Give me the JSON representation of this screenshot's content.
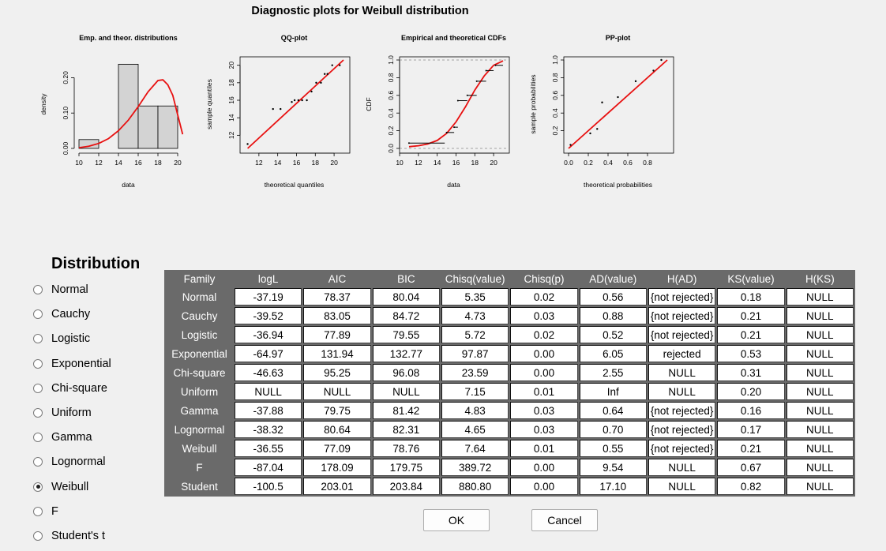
{
  "main_title": "Diagnostic plots for Weibull distribution",
  "chart_data": [
    {
      "type": "bar",
      "title": "Emp. and theor. distributions",
      "xlabel": "data",
      "ylabel": "density",
      "x_ticks": [
        "10",
        "12",
        "14",
        "16",
        "18",
        "20"
      ],
      "y_ticks": [
        "0.00",
        "0.10",
        "0.20"
      ],
      "xlim": [
        10,
        20
      ],
      "ylim": [
        0,
        0.25
      ],
      "bins": [
        {
          "from": 10,
          "to": 12,
          "density": 0.025
        },
        {
          "from": 12,
          "to": 14,
          "density": 0
        },
        {
          "from": 14,
          "to": 16,
          "density": 0.238
        },
        {
          "from": 16,
          "to": 18,
          "density": 0.12
        },
        {
          "from": 18,
          "to": 20,
          "density": 0.12
        }
      ],
      "curve": {
        "x": [
          10,
          11,
          12,
          13,
          14,
          15,
          16,
          17,
          18,
          18.5,
          19,
          19.5,
          20,
          20.5
        ],
        "y": [
          0.002,
          0.006,
          0.014,
          0.028,
          0.05,
          0.08,
          0.118,
          0.16,
          0.192,
          0.194,
          0.18,
          0.15,
          0.095,
          0.04
        ]
      },
      "curve_color": "#e81010"
    },
    {
      "type": "scatter",
      "title": "QQ-plot",
      "xlabel": "theoretical quantiles",
      "ylabel": "sample quantiles",
      "x_ticks": [
        "12",
        "14",
        "16",
        "18",
        "20"
      ],
      "y_ticks": [
        "12",
        "14",
        "16",
        "18",
        "20"
      ],
      "xlim": [
        10.5,
        21
      ],
      "ylim": [
        10.5,
        20.6
      ],
      "points": [
        [
          10.8,
          11
        ],
        [
          13.5,
          15
        ],
        [
          14.3,
          15
        ],
        [
          15.5,
          15.8
        ],
        [
          15.8,
          16
        ],
        [
          16.2,
          16
        ],
        [
          16.6,
          16
        ],
        [
          17.1,
          16
        ],
        [
          17.6,
          17
        ],
        [
          18.1,
          18
        ],
        [
          18.6,
          18
        ],
        [
          19,
          19
        ],
        [
          19.3,
          19
        ],
        [
          19.8,
          20
        ],
        [
          20.6,
          20
        ]
      ],
      "line": [
        [
          10.8,
          10.5
        ],
        [
          21,
          20.6
        ]
      ],
      "line_color": "#e81010"
    },
    {
      "type": "line",
      "title": "Empirical and theoretical CDFs",
      "xlabel": "data",
      "ylabel": "CDF",
      "x_ticks": [
        "10",
        "12",
        "14",
        "16",
        "18",
        "20"
      ],
      "y_ticks": [
        "0.0",
        "0.2",
        "0.4",
        "0.6",
        "0.8",
        "1.0"
      ],
      "xlim": [
        10.5,
        21
      ],
      "ylim": [
        0,
        1.0
      ],
      "steps": [
        [
          11,
          14.8,
          0.06
        ],
        [
          15,
          15.8,
          0.18
        ],
        [
          15.8,
          16.2,
          0.24
        ],
        [
          16.2,
          17.2,
          0.54
        ],
        [
          17.2,
          18.2,
          0.6
        ],
        [
          18.2,
          19.2,
          0.76
        ],
        [
          19.2,
          20,
          0.88
        ],
        [
          20.2,
          21,
          0.94
        ]
      ],
      "curve": {
        "x": [
          11,
          12,
          13,
          14,
          15,
          16,
          17,
          18,
          19,
          20,
          21
        ],
        "y": [
          0.02,
          0.03,
          0.05,
          0.09,
          0.17,
          0.3,
          0.47,
          0.66,
          0.82,
          0.94,
          0.99
        ]
      },
      "curve_color": "#e81010"
    },
    {
      "type": "scatter",
      "title": "PP-plot",
      "xlabel": "theoretical probabilities",
      "ylabel": "sample probabilities",
      "x_ticks": [
        "0.0",
        "0.2",
        "0.4",
        "0.6",
        "0.8"
      ],
      "y_ticks": [
        "0.2",
        "0.4",
        "0.6",
        "0.8",
        "1.0"
      ],
      "xlim": [
        0,
        1
      ],
      "ylim": [
        0,
        1
      ],
      "points": [
        [
          0.02,
          0.04
        ],
        [
          0.22,
          0.17
        ],
        [
          0.29,
          0.22
        ],
        [
          0.34,
          0.52
        ],
        [
          0.5,
          0.58
        ],
        [
          0.68,
          0.76
        ],
        [
          0.86,
          0.88
        ],
        [
          0.94,
          1.0
        ]
      ],
      "line": [
        [
          0,
          0
        ],
        [
          1,
          1
        ]
      ],
      "line_color": "#e81010"
    }
  ],
  "distribution_panel": {
    "title": "Distribution",
    "options": [
      {
        "label": "Normal",
        "checked": false
      },
      {
        "label": "Cauchy",
        "checked": false
      },
      {
        "label": "Logistic",
        "checked": false
      },
      {
        "label": "Exponential",
        "checked": false
      },
      {
        "label": "Chi-square",
        "checked": false
      },
      {
        "label": "Uniform",
        "checked": false
      },
      {
        "label": "Gamma",
        "checked": false
      },
      {
        "label": "Lognormal",
        "checked": false
      },
      {
        "label": "Weibull",
        "checked": true
      },
      {
        "label": "F",
        "checked": false
      },
      {
        "label": "Student's t",
        "checked": false
      }
    ]
  },
  "table": {
    "columns": [
      "Family",
      "logL",
      "AIC",
      "BIC",
      "Chisq(value)",
      "Chisq(p)",
      "AD(value)",
      "H(AD)",
      "KS(value)",
      "H(KS)"
    ],
    "rows": [
      [
        "Normal",
        "-37.19",
        "78.37",
        "80.04",
        "5.35",
        "0.02",
        "0.56",
        "{not rejected}",
        "0.18",
        "NULL"
      ],
      [
        "Cauchy",
        "-39.52",
        "83.05",
        "84.72",
        "4.73",
        "0.03",
        "0.88",
        "{not rejected}",
        "0.21",
        "NULL"
      ],
      [
        "Logistic",
        "-36.94",
        "77.89",
        "79.55",
        "5.72",
        "0.02",
        "0.52",
        "{not rejected}",
        "0.21",
        "NULL"
      ],
      [
        "Exponential",
        "-64.97",
        "131.94",
        "132.77",
        "97.87",
        "0.00",
        "6.05",
        "rejected",
        "0.53",
        "NULL"
      ],
      [
        "Chi-square",
        "-46.63",
        "95.25",
        "96.08",
        "23.59",
        "0.00",
        "2.55",
        "NULL",
        "0.31",
        "NULL"
      ],
      [
        "Uniform",
        "NULL",
        "NULL",
        "NULL",
        "7.15",
        "0.01",
        "Inf",
        "NULL",
        "0.20",
        "NULL"
      ],
      [
        "Gamma",
        "-37.88",
        "79.75",
        "81.42",
        "4.83",
        "0.03",
        "0.64",
        "{not rejected}",
        "0.16",
        "NULL"
      ],
      [
        "Lognormal",
        "-38.32",
        "80.64",
        "82.31",
        "4.65",
        "0.03",
        "0.70",
        "{not rejected}",
        "0.17",
        "NULL"
      ],
      [
        "Weibull",
        "-36.55",
        "77.09",
        "78.76",
        "7.64",
        "0.01",
        "0.55",
        "{not rejected}",
        "0.21",
        "NULL"
      ],
      [
        "F",
        "-87.04",
        "178.09",
        "179.75",
        "389.72",
        "0.00",
        "9.54",
        "NULL",
        "0.67",
        "NULL"
      ],
      [
        "Student",
        "-100.5",
        "203.01",
        "203.84",
        "880.80",
        "0.00",
        "17.10",
        "NULL",
        "0.82",
        "NULL"
      ]
    ]
  },
  "buttons": {
    "ok": "OK",
    "cancel": "Cancel"
  }
}
